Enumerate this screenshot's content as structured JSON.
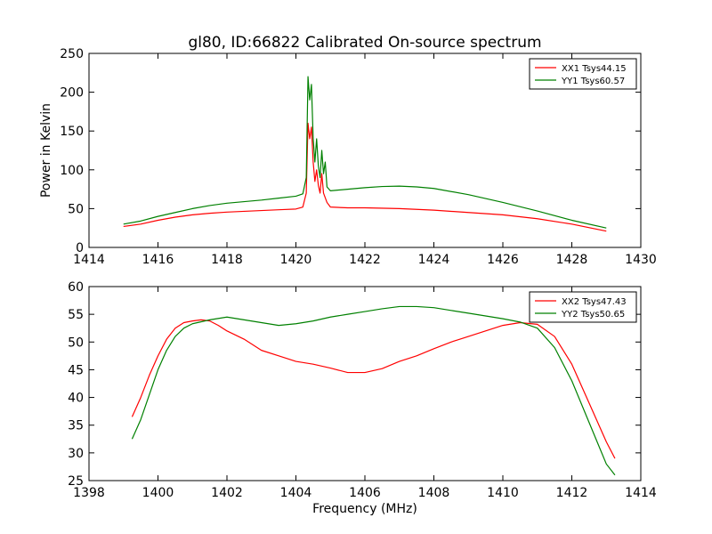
{
  "figure": {
    "title": "gl80, ID:66822 Calibrated On-source spectrum"
  },
  "chart_data": [
    {
      "type": "line",
      "title": "gl80, ID:66822 Calibrated On-source spectrum",
      "xlabel": "",
      "ylabel": "Power in Kelvin",
      "xlim": [
        1414,
        1430
      ],
      "ylim": [
        0,
        250
      ],
      "xticks": [
        "1414",
        "1416",
        "1418",
        "1420",
        "1422",
        "1424",
        "1426",
        "1428",
        "1430"
      ],
      "yticks": [
        "0",
        "50",
        "100",
        "150",
        "200",
        "250"
      ],
      "grid": false,
      "legend_position": "top-right",
      "series": [
        {
          "name": "XX1 Tsys44.15",
          "color": "#ff0000",
          "points": [
            [
              1415.0,
              27
            ],
            [
              1415.5,
              30
            ],
            [
              1416.0,
              35
            ],
            [
              1416.5,
              39
            ],
            [
              1417.0,
              42
            ],
            [
              1417.5,
              44
            ],
            [
              1418.0,
              45.5
            ],
            [
              1418.5,
              46.5
            ],
            [
              1419.0,
              47.5
            ],
            [
              1419.5,
              48.5
            ],
            [
              1420.0,
              49.5
            ],
            [
              1420.2,
              52
            ],
            [
              1420.3,
              70
            ],
            [
              1420.35,
              160
            ],
            [
              1420.4,
              140
            ],
            [
              1420.45,
              155
            ],
            [
              1420.5,
              110
            ],
            [
              1420.55,
              85
            ],
            [
              1420.6,
              100
            ],
            [
              1420.65,
              80
            ],
            [
              1420.7,
              70
            ],
            [
              1420.75,
              95
            ],
            [
              1420.8,
              70
            ],
            [
              1420.9,
              58
            ],
            [
              1421.0,
              52
            ],
            [
              1421.5,
              51
            ],
            [
              1422.0,
              51
            ],
            [
              1423.0,
              50
            ],
            [
              1424.0,
              48
            ],
            [
              1425.0,
              45
            ],
            [
              1426.0,
              42
            ],
            [
              1427.0,
              37
            ],
            [
              1428.0,
              30
            ],
            [
              1429.0,
              21
            ]
          ]
        },
        {
          "name": "YY1 Tsys60.57",
          "color": "#008000",
          "points": [
            [
              1415.0,
              30
            ],
            [
              1415.5,
              34
            ],
            [
              1416.0,
              40
            ],
            [
              1416.5,
              45
            ],
            [
              1417.0,
              50
            ],
            [
              1417.5,
              54
            ],
            [
              1418.0,
              57
            ],
            [
              1418.5,
              59
            ],
            [
              1419.0,
              61
            ],
            [
              1419.5,
              63.5
            ],
            [
              1420.0,
              66
            ],
            [
              1420.2,
              69
            ],
            [
              1420.3,
              90
            ],
            [
              1420.35,
              220
            ],
            [
              1420.4,
              190
            ],
            [
              1420.45,
              210
            ],
            [
              1420.5,
              140
            ],
            [
              1420.55,
              110
            ],
            [
              1420.6,
              140
            ],
            [
              1420.65,
              105
            ],
            [
              1420.7,
              90
            ],
            [
              1420.75,
              125
            ],
            [
              1420.8,
              95
            ],
            [
              1420.85,
              110
            ],
            [
              1420.9,
              78
            ],
            [
              1421.0,
              73
            ],
            [
              1421.5,
              75
            ],
            [
              1422.0,
              77
            ],
            [
              1422.5,
              78.5
            ],
            [
              1423.0,
              79
            ],
            [
              1423.5,
              78
            ],
            [
              1424.0,
              76
            ],
            [
              1425.0,
              68
            ],
            [
              1426.0,
              58
            ],
            [
              1427.0,
              47
            ],
            [
              1428.0,
              35
            ],
            [
              1429.0,
              25
            ]
          ]
        }
      ]
    },
    {
      "type": "line",
      "title": "",
      "xlabel": "Frequency (MHz)",
      "ylabel": "",
      "xlim": [
        1398,
        1414
      ],
      "ylim": [
        25,
        60
      ],
      "xticks": [
        "1398",
        "1400",
        "1402",
        "1404",
        "1406",
        "1408",
        "1410",
        "1412",
        "1414"
      ],
      "yticks": [
        "25",
        "30",
        "35",
        "40",
        "45",
        "50",
        "55",
        "60"
      ],
      "grid": false,
      "legend_position": "top-right",
      "series": [
        {
          "name": "XX2 Tsys47.43",
          "color": "#ff0000",
          "points": [
            [
              1399.25,
              36.5
            ],
            [
              1399.5,
              40
            ],
            [
              1399.75,
              44
            ],
            [
              1400.0,
              47.5
            ],
            [
              1400.25,
              50.5
            ],
            [
              1400.5,
              52.5
            ],
            [
              1400.75,
              53.5
            ],
            [
              1401.0,
              53.8
            ],
            [
              1401.25,
              54
            ],
            [
              1401.5,
              53.8
            ],
            [
              1401.75,
              53
            ],
            [
              1402.0,
              52
            ],
            [
              1402.5,
              50.5
            ],
            [
              1403.0,
              48.5
            ],
            [
              1403.5,
              47.5
            ],
            [
              1404.0,
              46.5
            ],
            [
              1404.5,
              46
            ],
            [
              1405.0,
              45.3
            ],
            [
              1405.5,
              44.5
            ],
            [
              1406.0,
              44.5
            ],
            [
              1406.5,
              45.2
            ],
            [
              1407.0,
              46.5
            ],
            [
              1407.5,
              47.5
            ],
            [
              1408.0,
              48.8
            ],
            [
              1408.5,
              50
            ],
            [
              1409.0,
              51
            ],
            [
              1409.5,
              52
            ],
            [
              1410.0,
              53
            ],
            [
              1410.5,
              53.5
            ],
            [
              1411.0,
              53.2
            ],
            [
              1411.5,
              51
            ],
            [
              1412.0,
              46
            ],
            [
              1412.5,
              39
            ],
            [
              1413.0,
              32
            ],
            [
              1413.25,
              29
            ]
          ]
        },
        {
          "name": "YY2 Tsys50.65",
          "color": "#008000",
          "points": [
            [
              1399.25,
              32.5
            ],
            [
              1399.5,
              36
            ],
            [
              1399.75,
              40.5
            ],
            [
              1400.0,
              45
            ],
            [
              1400.25,
              48.5
            ],
            [
              1400.5,
              51
            ],
            [
              1400.75,
              52.5
            ],
            [
              1401.0,
              53.3
            ],
            [
              1401.5,
              54
            ],
            [
              1402.0,
              54.5
            ],
            [
              1402.5,
              54
            ],
            [
              1403.0,
              53.5
            ],
            [
              1403.5,
              53
            ],
            [
              1404.0,
              53.3
            ],
            [
              1404.5,
              53.8
            ],
            [
              1405.0,
              54.5
            ],
            [
              1405.5,
              55
            ],
            [
              1406.0,
              55.5
            ],
            [
              1406.5,
              56
            ],
            [
              1407.0,
              56.4
            ],
            [
              1407.5,
              56.4
            ],
            [
              1408.0,
              56.2
            ],
            [
              1408.5,
              55.7
            ],
            [
              1409.0,
              55.2
            ],
            [
              1409.5,
              54.7
            ],
            [
              1410.0,
              54.2
            ],
            [
              1410.5,
              53.6
            ],
            [
              1411.0,
              52.5
            ],
            [
              1411.5,
              49
            ],
            [
              1412.0,
              43
            ],
            [
              1412.5,
              35.5
            ],
            [
              1413.0,
              28
            ],
            [
              1413.25,
              26
            ]
          ]
        }
      ]
    }
  ]
}
